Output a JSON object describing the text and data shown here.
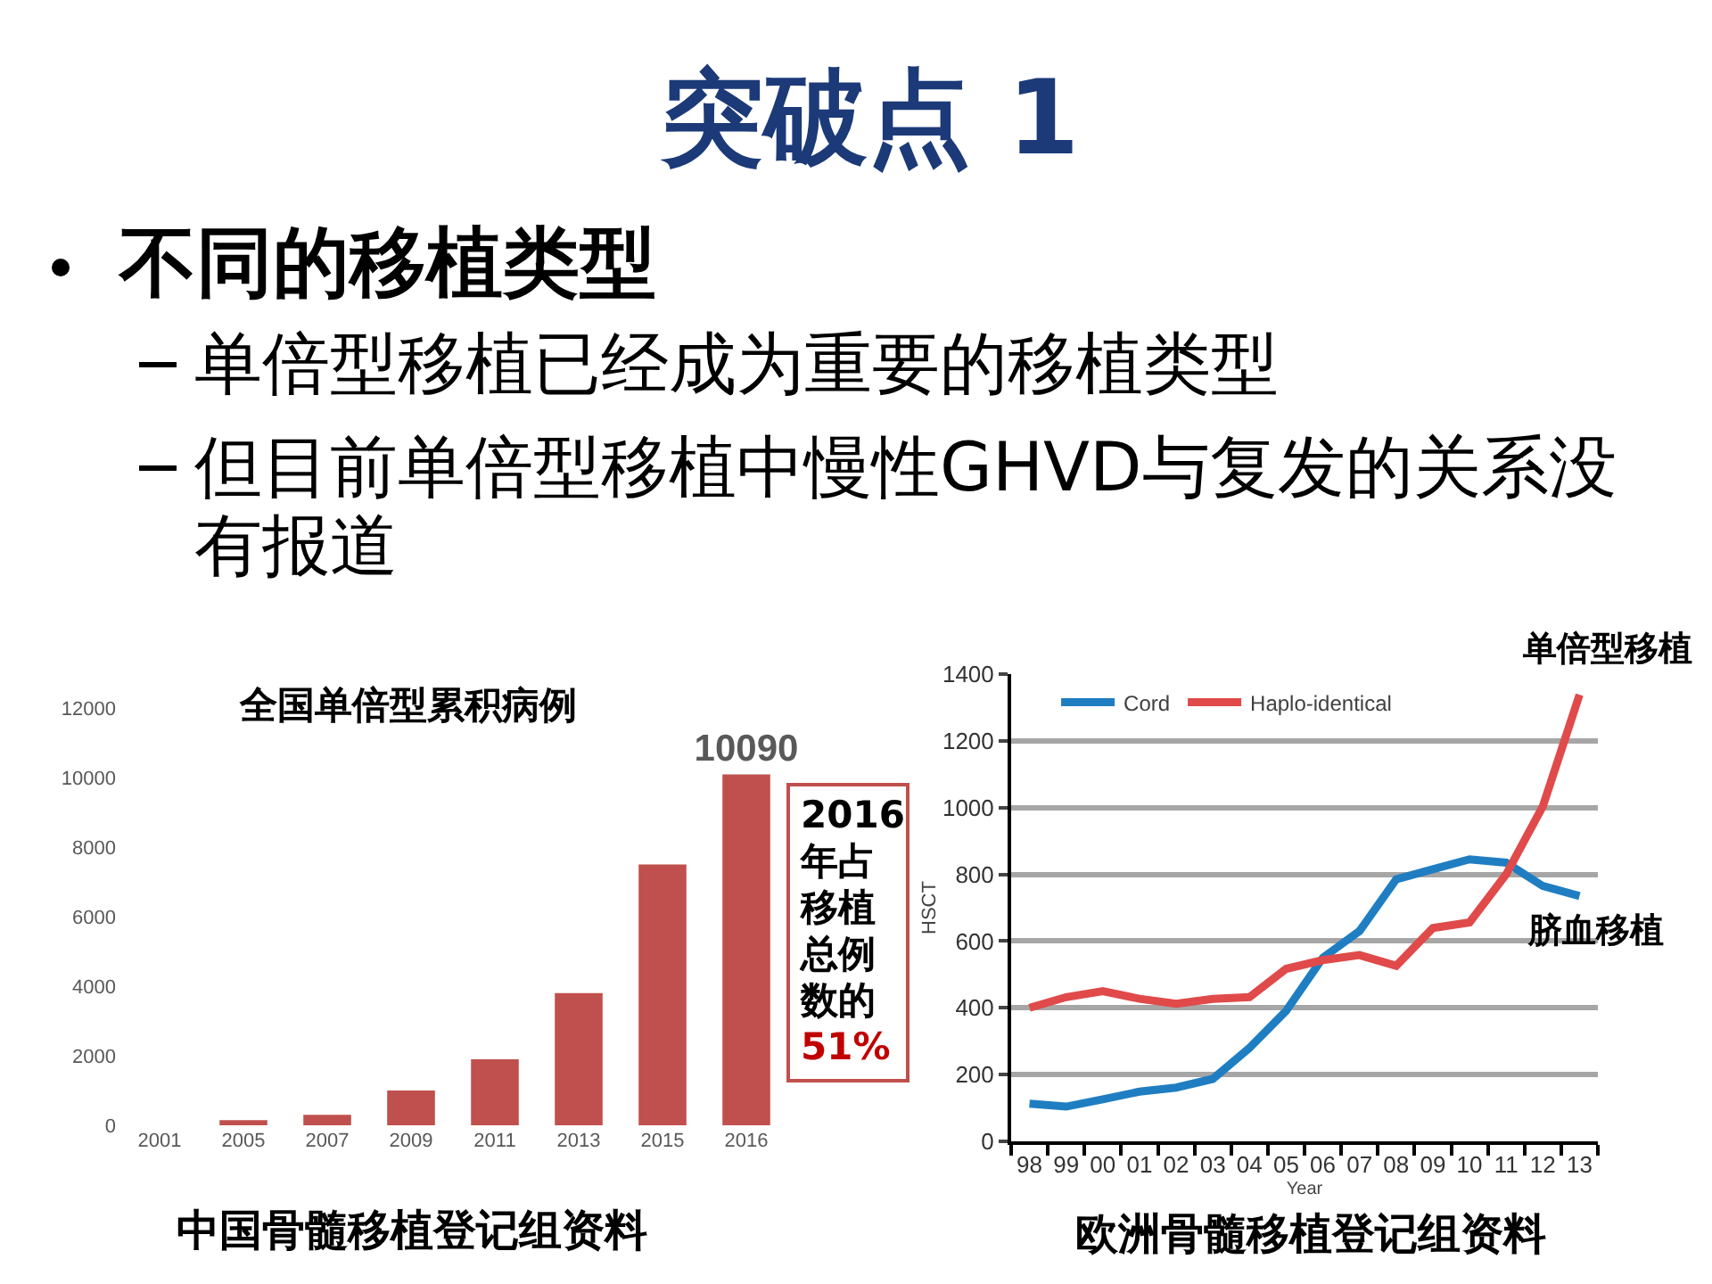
{
  "chart_data": [
    {
      "type": "other",
      "title": "突破点 1",
      "subtitle": "不同的移植类型",
      "annotations": [
        "单倍型移植已经成为重要的移植类型",
        "但目前单倍型移植中慢性GHVD与复发的关系没有报道"
      ]
    },
    {
      "type": "bar",
      "title": "全国单倍型累积病例",
      "categories": [
        "2001",
        "2005",
        "2007",
        "2009",
        "2011",
        "2013",
        "2015",
        "2016"
      ],
      "values": [
        0,
        150,
        300,
        1000,
        1900,
        3800,
        7500,
        10090
      ],
      "color": "#c0504d",
      "ylim": [
        0,
        12000
      ],
      "yticks": [
        0,
        2000,
        4000,
        6000,
        8000,
        10000,
        12000
      ],
      "value_labels": [
        null,
        null,
        null,
        null,
        null,
        null,
        null,
        "10090"
      ],
      "annotations": [
        "2016年占移植总例数的",
        "51%",
        "中国骨髓移植登记组资料"
      ]
    },
    {
      "type": "line",
      "categories": [
        "98",
        "99",
        "00",
        "01",
        "02",
        "03",
        "04",
        "05",
        "06",
        "07",
        "08",
        "09",
        "10",
        "11",
        "12",
        "13"
      ],
      "series": [
        {
          "name": "Cord",
          "color": "#1f7ec2",
          "values": [
            113,
            104,
            126,
            149,
            161,
            187,
            280,
            391,
            550,
            630,
            785,
            815,
            845,
            835,
            765,
            735
          ]
        },
        {
          "name": "Haplo-identical",
          "color": "#e04a4a",
          "values": [
            400,
            432,
            450,
            427,
            412,
            427,
            432,
            517,
            543,
            558,
            526,
            639,
            656,
            800,
            1004,
            1338
          ]
        }
      ],
      "ylim": [
        0,
        1400
      ],
      "yticks": [
        0,
        200,
        400,
        600,
        800,
        1000,
        1200,
        1400
      ],
      "ylabel": "HSCT",
      "xlabel": "Year",
      "grid": "y",
      "legend": "top left",
      "line_style": "solid",
      "annotations": [
        {
          "text": "单倍型移植",
          "x": "13",
          "y": 1338
        },
        {
          "text": "脐血移植",
          "x": "13",
          "y": 735
        },
        "欧洲骨髓移植登记组资料"
      ]
    }
  ]
}
